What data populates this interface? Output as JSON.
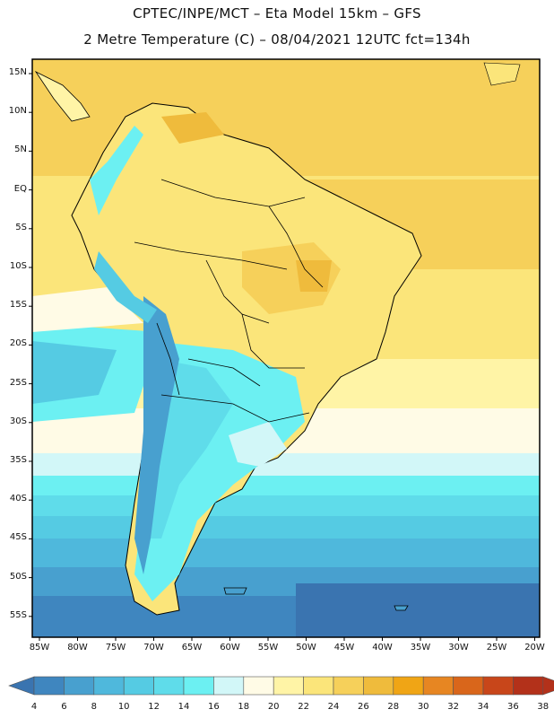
{
  "header": {
    "line1": "CPTEC/INPE/MCT –  Eta Model 15km – GFS",
    "line2": "2 Metre Temperature (C) – 08/04/2021 12UTC fct=134h"
  },
  "map": {
    "lat_ticks": [
      "15N",
      "10N",
      "5N",
      "EQ",
      "5S",
      "10S",
      "15S",
      "20S",
      "25S",
      "30S",
      "35S",
      "40S",
      "45S",
      "50S",
      "55S"
    ],
    "lon_ticks": [
      "85W",
      "80W",
      "75W",
      "70W",
      "65W",
      "60W",
      "55W",
      "50W",
      "45W",
      "40W",
      "35W",
      "30W",
      "25W",
      "20W"
    ]
  },
  "colorbar": {
    "labels": [
      "4",
      "6",
      "8",
      "10",
      "12",
      "14",
      "16",
      "18",
      "20",
      "22",
      "24",
      "26",
      "28",
      "30",
      "32",
      "34",
      "36",
      "38"
    ],
    "colors": [
      "#3a74b0",
      "#3f86bf",
      "#48a0cf",
      "#4fb8dc",
      "#55cbe3",
      "#5fdcea",
      "#6cf0f2",
      "#d2f7f8",
      "#fffbe6",
      "#fff4a6",
      "#fbe57a",
      "#f6d05a",
      "#efbb3c",
      "#f0a515",
      "#e78622",
      "#d9661b",
      "#c8461a",
      "#b3311a"
    ]
  }
}
